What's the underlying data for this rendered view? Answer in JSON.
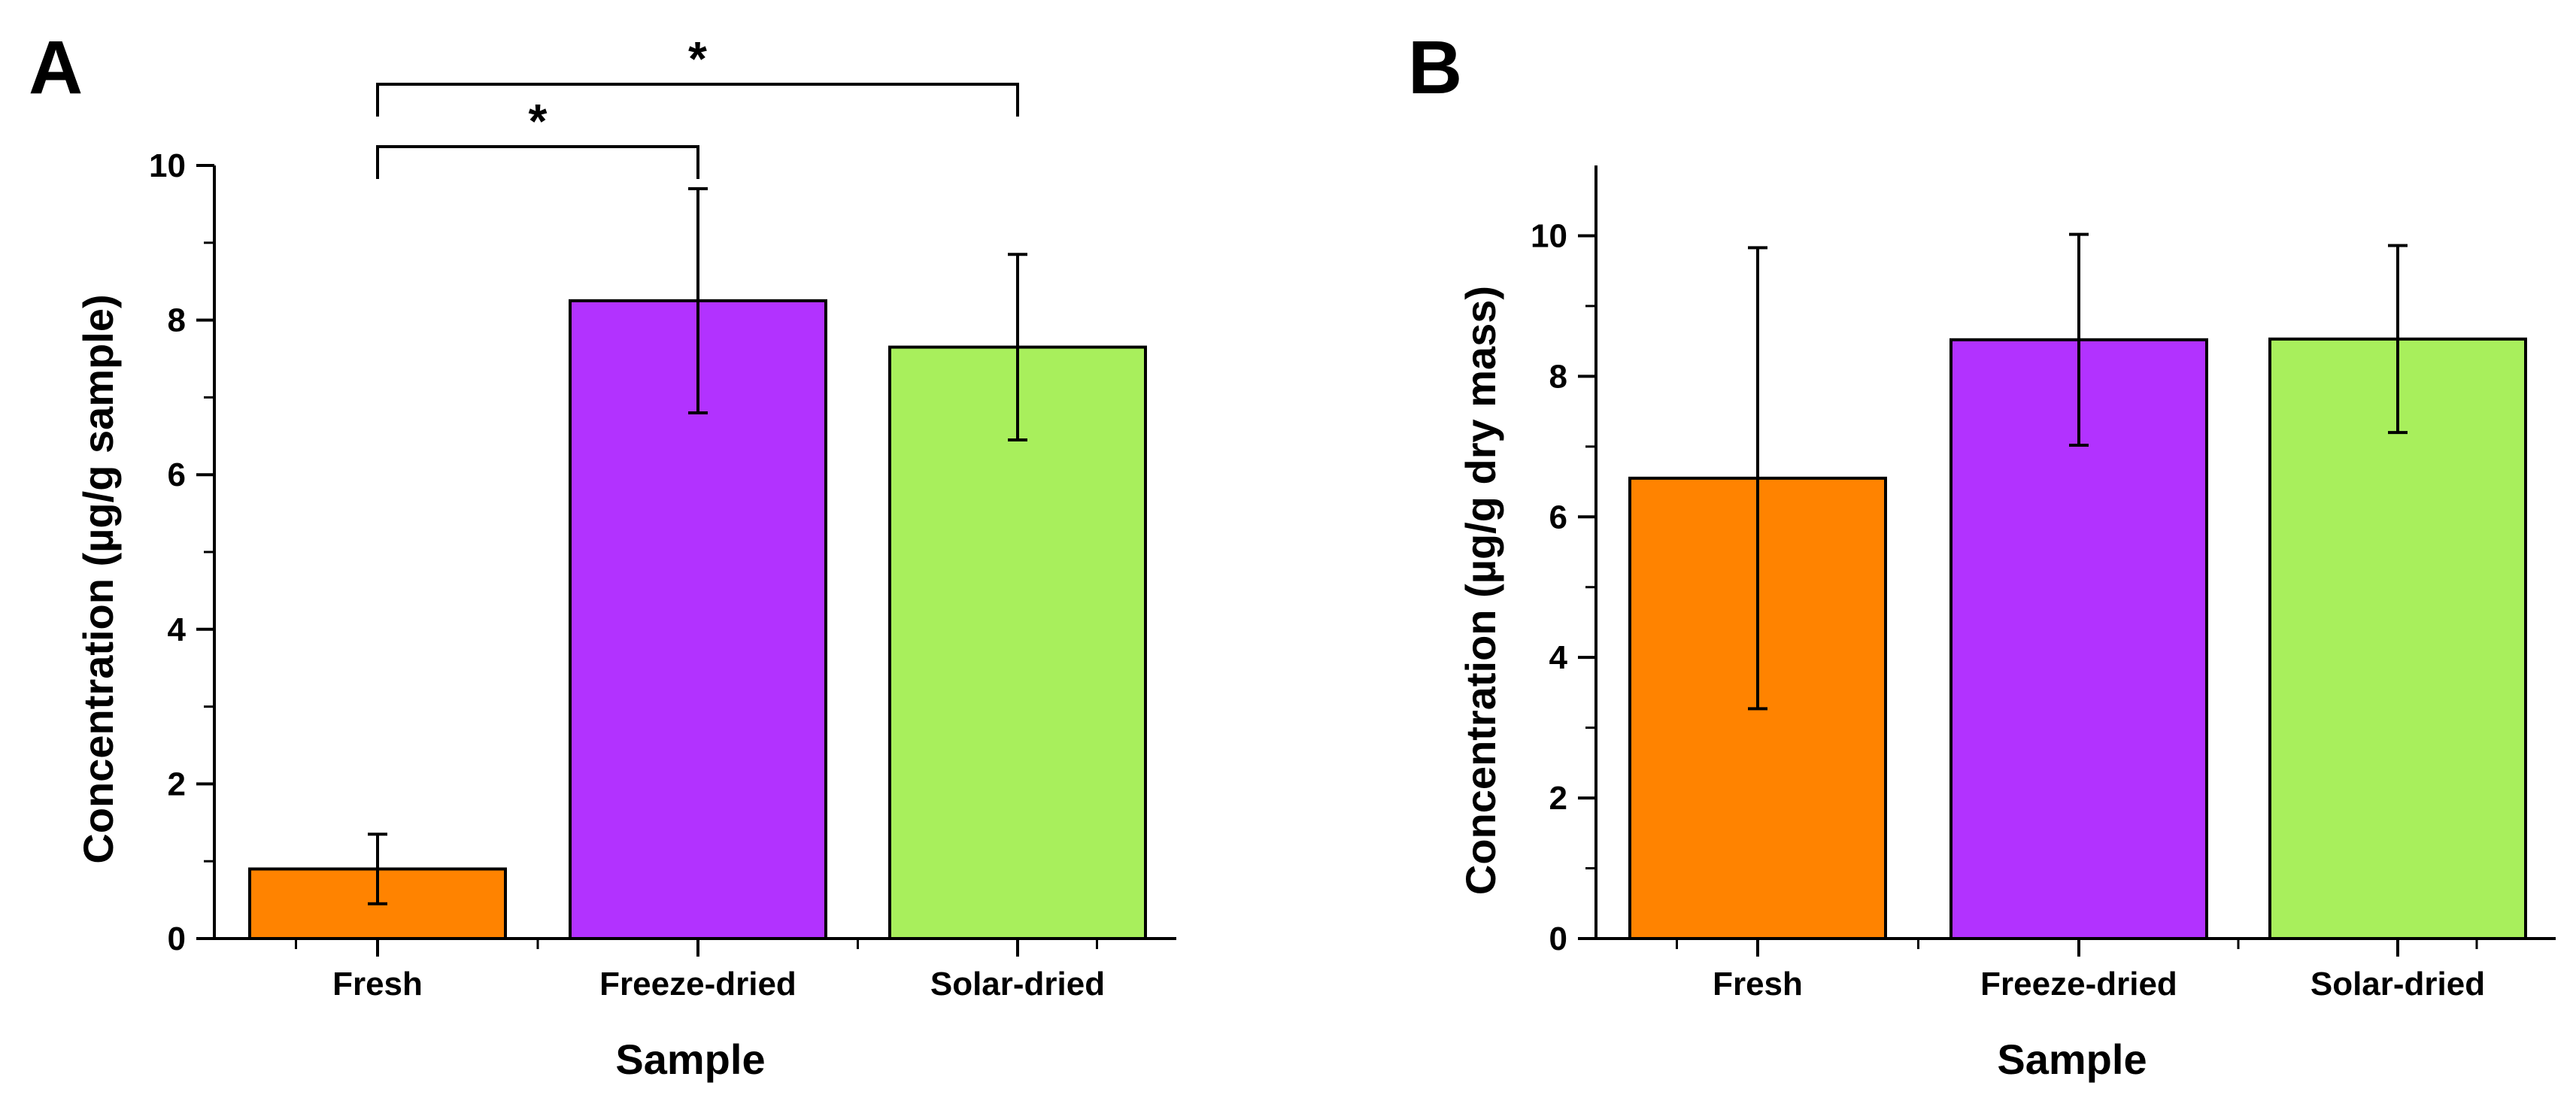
{
  "chart_data": [
    {
      "panel": "A",
      "type": "bar",
      "title": "",
      "xlabel": "Sample",
      "ylabel": "Concentration (µg/g sample)",
      "categories": [
        "Fresh",
        "Freeze-dried",
        "Solar-dried"
      ],
      "values": [
        0.9,
        8.25,
        7.65
      ],
      "errors": [
        0.45,
        1.45,
        1.2
      ],
      "bar_colors": [
        "#FF8300",
        "#B232FF",
        "#A8EF5C"
      ],
      "ylim": [
        0,
        10
      ],
      "yticks": [
        "0",
        "2",
        "4",
        "6",
        "8",
        "10"
      ],
      "grid": false,
      "annotations": [
        {
          "from": "Fresh",
          "to": "Freeze-dried",
          "label": "*"
        },
        {
          "from": "Fresh",
          "to": "Solar-dried",
          "label": "*"
        }
      ]
    },
    {
      "panel": "B",
      "type": "bar",
      "title": "",
      "xlabel": "Sample",
      "ylabel": "Concentration (µg/g dry mass)",
      "categories": [
        "Fresh",
        "Freeze-dried",
        "Solar-dried"
      ],
      "values": [
        6.55,
        8.52,
        8.53
      ],
      "errors": [
        3.28,
        1.5,
        1.33
      ],
      "bar_colors": [
        "#FF8300",
        "#B232FF",
        "#A8EF5C"
      ],
      "ylim": [
        0,
        11
      ],
      "yticks": [
        "0",
        "2",
        "4",
        "6",
        "8",
        "10"
      ],
      "grid": false,
      "annotations": []
    }
  ]
}
